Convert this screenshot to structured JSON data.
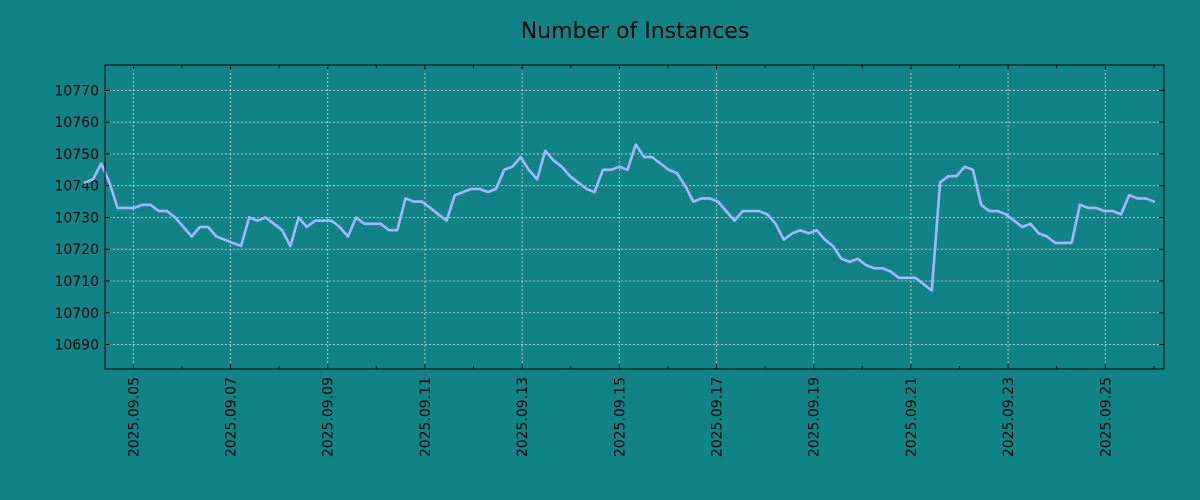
{
  "chart_data": {
    "type": "line",
    "title": "Number of Instances",
    "xlabel": "",
    "ylabel": "",
    "x_date_start": "2025-09-04",
    "x_date_end": "2025-09-26",
    "xlim": [
      "2025-09-04T10:00",
      "2025-09-26T05:00"
    ],
    "x_ticks": [
      "2025.09.05",
      "2025.09.07",
      "2025.09.09",
      "2025.09.11",
      "2025.09.13",
      "2025.09.15",
      "2025.09.17",
      "2025.09.19",
      "2025.09.21",
      "2025.09.23",
      "2025.09.25"
    ],
    "y_ticks": [
      10690,
      10700,
      10710,
      10720,
      10730,
      10740,
      10750,
      10760,
      10770
    ],
    "ylim": [
      10682.3,
      10778
    ],
    "grid": true,
    "colors": {
      "background": "#108387",
      "line": "#a7b6fc",
      "grid": "#cfd9d9",
      "axis": "#000000"
    },
    "series": [
      {
        "values": [
          10741,
          10742,
          10747,
          10741,
          10733,
          10733,
          10733,
          10734,
          10734,
          10732,
          10732,
          10730,
          10727,
          10724,
          10727,
          10727,
          10724,
          10723,
          10722,
          10721,
          10730,
          10729,
          10730,
          10728,
          10726,
          10721,
          10730,
          10727,
          10729,
          10729,
          10729,
          10727,
          10724,
          10730,
          10728,
          10728,
          10728,
          10726,
          10726,
          10736,
          10735,
          10735,
          10733,
          10731,
          10729,
          10737,
          10738,
          10739,
          10739,
          10738,
          10739,
          10745,
          10746,
          10749,
          10745,
          10742,
          10751,
          10748,
          10746,
          10743,
          10741,
          10739,
          10738,
          10745,
          10745,
          10746,
          10745,
          10753,
          10749,
          10749,
          10747,
          10745,
          10744,
          10740,
          10735,
          10736,
          10736,
          10735,
          10732,
          10729,
          10732,
          10732,
          10732,
          10731,
          10728,
          10723,
          10725,
          10726,
          10725,
          10726,
          10723,
          10721,
          10717,
          10716,
          10717,
          10715,
          10714,
          10714,
          10713,
          10711,
          10711,
          10711,
          10709,
          10707,
          10741,
          10743,
          10743,
          10746,
          10745,
          10734,
          10732,
          10732,
          10731,
          10729,
          10727,
          10728,
          10725,
          10724,
          10722,
          10722,
          10722,
          10734,
          10733,
          10733,
          10732,
          10732,
          10731,
          10737,
          10736,
          10736,
          10735
        ]
      }
    ]
  }
}
